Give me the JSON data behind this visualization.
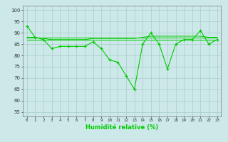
{
  "title": "",
  "xlabel": "Humidité relative (%)",
  "ylabel": "",
  "bg_color": "#cce8e8",
  "grid_color": "#aacccc",
  "line_color": "#00cc00",
  "x_ticks": [
    0,
    1,
    2,
    3,
    4,
    5,
    6,
    7,
    8,
    9,
    10,
    11,
    12,
    13,
    14,
    15,
    16,
    17,
    18,
    19,
    20,
    21,
    22,
    23
  ],
  "y_ticks": [
    55,
    60,
    65,
    70,
    75,
    80,
    85,
    90,
    95,
    100
  ],
  "ylim": [
    53,
    102
  ],
  "xlim": [
    -0.5,
    23.5
  ],
  "main_data": [
    93,
    88,
    87,
    83,
    84,
    84,
    84,
    84,
    86,
    83,
    78,
    77,
    71,
    65,
    85,
    90,
    85,
    74,
    85,
    87,
    87,
    91,
    85,
    87
  ],
  "ref_line1": [
    88,
    88,
    88,
    88,
    88,
    88,
    88,
    88,
    88,
    88,
    88,
    88,
    88,
    88,
    88,
    88,
    88,
    88,
    88,
    88,
    88,
    88,
    88,
    88
  ],
  "ref_line2": [
    87,
    87,
    87,
    87,
    87,
    87,
    87,
    87,
    87,
    87,
    87,
    87,
    87,
    87,
    87,
    87,
    87,
    87,
    87,
    87,
    87,
    87,
    87,
    87
  ],
  "ref_line3": [
    88,
    88,
    87.5,
    87,
    87,
    87,
    87,
    87,
    87.5,
    87.5,
    87.5,
    87.5,
    87.5,
    87.5,
    88,
    88.5,
    88.5,
    88.5,
    88.5,
    88.5,
    88.5,
    88.5,
    88,
    88
  ]
}
